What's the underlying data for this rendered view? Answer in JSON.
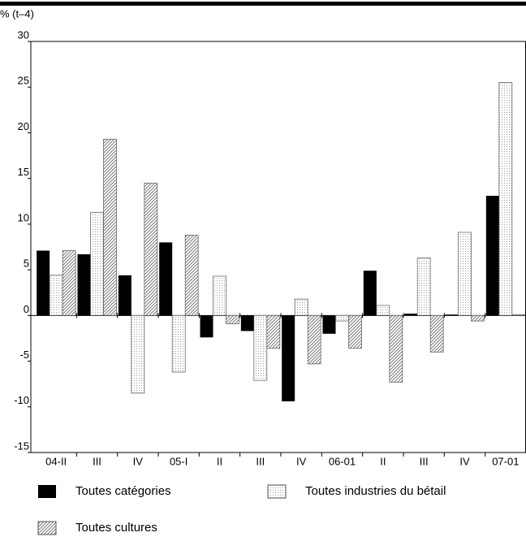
{
  "chart_data": {
    "type": "bar",
    "y_axis_label": "% (t–4)",
    "categories": [
      "04-II",
      "III",
      "IV",
      "05-I",
      "II",
      "III",
      "IV",
      "06-01",
      "II",
      "III",
      "IV",
      "07-01"
    ],
    "series": [
      {
        "name": "Toutes catégories",
        "color": "#000000",
        "pattern": "solid",
        "values": [
          7.1,
          6.7,
          4.4,
          8.0,
          -2.4,
          -1.7,
          -9.4,
          -2.0,
          4.9,
          0.2,
          0.1,
          13.1
        ]
      },
      {
        "name": "Toutes industries du bétail",
        "color": "#9a9a9a",
        "pattern": "dots",
        "values": [
          4.4,
          11.3,
          -8.5,
          -6.2,
          4.3,
          -7.1,
          1.8,
          -0.6,
          1.1,
          6.3,
          9.1,
          25.5
        ]
      },
      {
        "name": "Toutes cultures",
        "color": "#7a7a7a",
        "pattern": "hatch",
        "values": [
          7.1,
          19.3,
          14.5,
          8.8,
          -0.9,
          -3.6,
          -5.3,
          -3.6,
          -7.3,
          -4.0,
          -0.6,
          0.1
        ]
      }
    ],
    "ylim": [
      -15,
      30
    ],
    "yticks": [
      30,
      25,
      20,
      15,
      10,
      5,
      0,
      -5,
      -10,
      -15
    ]
  }
}
